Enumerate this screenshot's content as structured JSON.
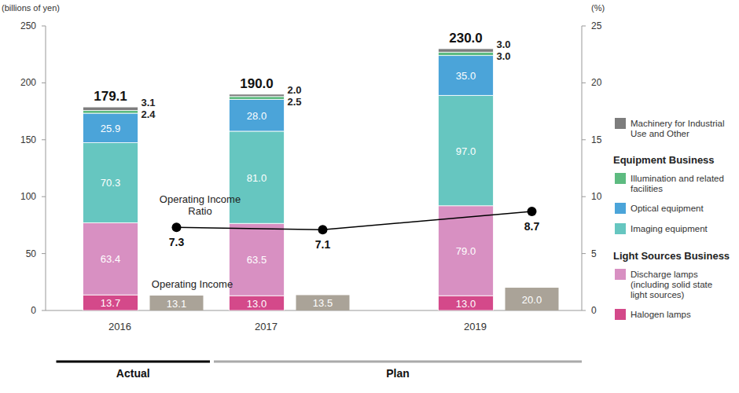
{
  "chart_data": {
    "type": "bar",
    "stacked": true,
    "data_labels": true,
    "grid": false,
    "legend": "right",
    "y_label": "(billions of yen)",
    "y2_label": "(%)",
    "categories": [
      "2016",
      "2017",
      "2019"
    ],
    "periods": [
      "Actual",
      "Plan",
      "Plan"
    ],
    "ylim": [
      0,
      250
    ],
    "yticks": [
      0,
      50,
      100,
      150,
      200,
      250
    ],
    "y2lim": [
      0,
      25
    ],
    "y2ticks": [
      0,
      5,
      10,
      15,
      20,
      25
    ],
    "totals": [
      179.1,
      190,
      230
    ],
    "totals_labels": [
      "179.1",
      "190.0",
      "230.0"
    ],
    "series": [
      {
        "name": "Halogen lamps",
        "group": "Light Sources Business",
        "color": "#d4498a",
        "values": [
          13.7,
          13.0,
          13.0
        ],
        "value_labels": [
          "13.7",
          "13.0",
          "13.0"
        ]
      },
      {
        "name": "Discharge lamps (including solid state light sources)",
        "group": "Light Sources Business",
        "color": "#d890c2",
        "values": [
          63.4,
          63.5,
          79.0
        ],
        "value_labels": [
          "63.4",
          "63.5",
          "79.0"
        ]
      },
      {
        "name": "Imaging equipment",
        "group": "Equipment Business",
        "color": "#66c6c0",
        "values": [
          70.3,
          81.0,
          97.0
        ],
        "value_labels": [
          "70.3",
          "81.0",
          "97.0"
        ]
      },
      {
        "name": "Optical equipment",
        "group": "Equipment Business",
        "color": "#4ba4d9",
        "values": [
          25.9,
          28.0,
          35.0
        ],
        "value_labels": [
          "25.9",
          "28.0",
          "35.0"
        ]
      },
      {
        "name": "Illumination and related facilities",
        "group": "Equipment Business",
        "color": "#5dbb80",
        "values": [
          2.4,
          2.5,
          3.0
        ],
        "value_labels": [
          "2.4",
          "2.5",
          "3.0"
        ]
      },
      {
        "name": "Machinery for Industrial Use and Other",
        "color": "#7d7d7d",
        "values": [
          3.1,
          2.0,
          3.0
        ],
        "value_labels": [
          "3.1",
          "2.0",
          "3.0"
        ]
      },
      {
        "name": "Operating Income",
        "type": "bar",
        "color": "#aaa398",
        "values": [
          13.1,
          13.5,
          20.0
        ],
        "value_labels": [
          "13.1",
          "13.5",
          "20.0"
        ]
      },
      {
        "name": "Operating Income Ratio",
        "type": "line",
        "axis": "y2",
        "color": "#000000",
        "marker": "circle",
        "values": [
          7.3,
          7.1,
          8.7
        ]
      }
    ]
  }
}
